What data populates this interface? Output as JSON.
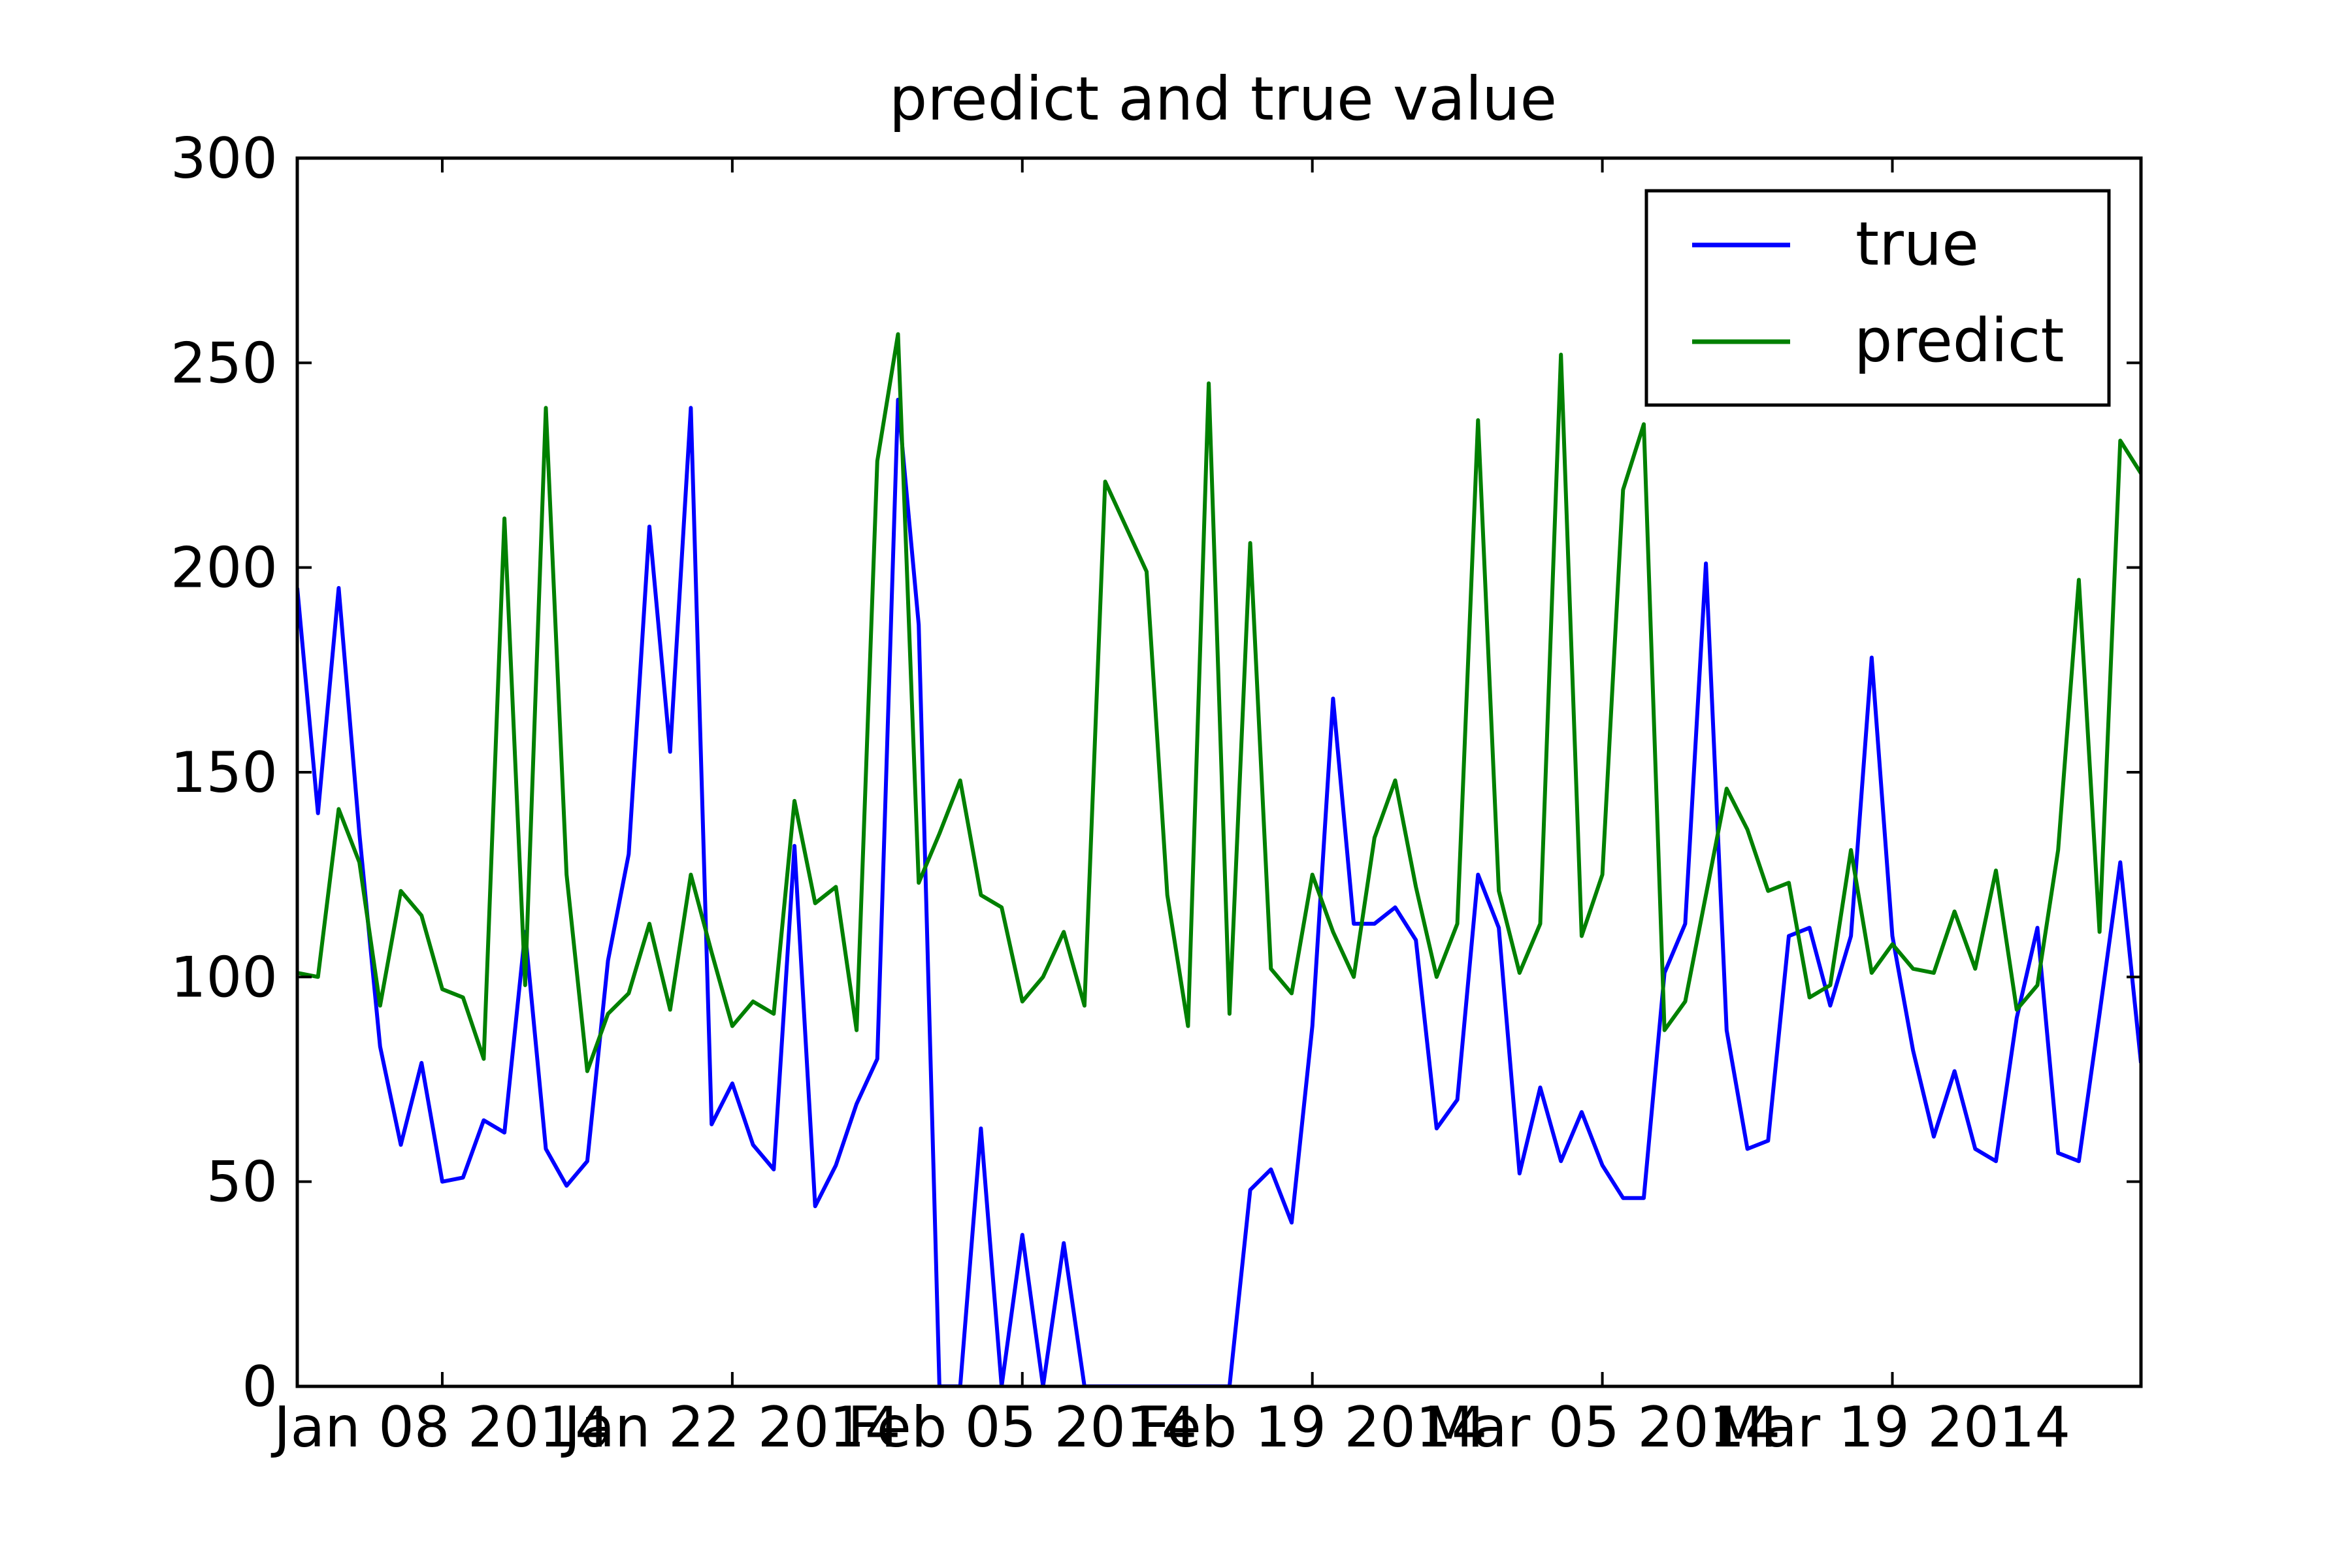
{
  "chart_data": {
    "type": "line",
    "title": "predict and true value",
    "xlabel": "",
    "ylabel": "",
    "ylim": [
      0,
      300
    ],
    "xlim": [
      1,
      90
    ],
    "grid": false,
    "legend_position": "top-right",
    "yticks": [
      0,
      50,
      100,
      150,
      200,
      250,
      300
    ],
    "xticks": [
      {
        "x": 8,
        "label": "Jan 08 2014"
      },
      {
        "x": 22,
        "label": "Jan 22 2014"
      },
      {
        "x": 36,
        "label": "Feb 05 2014"
      },
      {
        "x": 50,
        "label": "Feb 19 2014"
      },
      {
        "x": 64,
        "label": "Mar 05 2014"
      },
      {
        "x": 78,
        "label": "Mar 19 2014"
      }
    ],
    "series": [
      {
        "name": "true",
        "color": "#0000ff",
        "values": [
          195,
          140,
          195,
          135,
          83,
          59,
          79,
          50,
          51,
          65,
          62,
          111,
          58,
          49,
          55,
          104,
          130,
          210,
          155,
          239,
          64,
          74,
          59,
          53,
          132,
          44,
          54,
          69,
          80,
          241,
          186,
          0,
          0,
          63,
          0,
          37,
          0,
          35,
          0,
          0,
          0,
          0,
          0,
          0,
          0,
          0,
          48,
          53,
          40,
          88,
          168,
          113,
          113,
          117,
          109,
          63,
          70,
          125,
          112,
          52,
          73,
          55,
          67,
          54,
          46,
          46,
          101,
          113,
          201,
          87,
          58,
          60,
          110,
          112,
          93,
          110,
          178,
          110,
          82,
          61,
          77,
          58,
          55,
          90,
          112,
          57,
          55,
          91,
          128,
          79
        ]
      },
      {
        "name": "predict",
        "color": "#008000",
        "values": [
          101,
          100,
          141,
          128,
          93,
          121,
          115,
          97,
          95,
          80,
          212,
          98,
          239,
          125,
          77,
          91,
          96,
          113,
          92,
          125,
          106,
          88,
          94,
          91,
          143,
          118,
          122,
          87,
          226,
          257,
          123,
          135,
          148,
          120,
          117,
          94,
          100,
          111,
          93,
          221,
          210,
          199,
          120,
          88,
          245,
          91,
          206,
          102,
          96,
          125,
          111,
          100,
          134,
          148,
          122,
          100,
          113,
          236,
          121,
          101,
          113,
          252,
          110,
          125,
          219,
          235,
          87,
          94,
          120,
          146,
          136,
          121,
          123,
          95,
          98,
          131,
          101,
          108,
          102,
          101,
          116,
          102,
          126,
          92,
          98,
          131,
          197,
          111,
          231,
          223
        ]
      }
    ]
  }
}
